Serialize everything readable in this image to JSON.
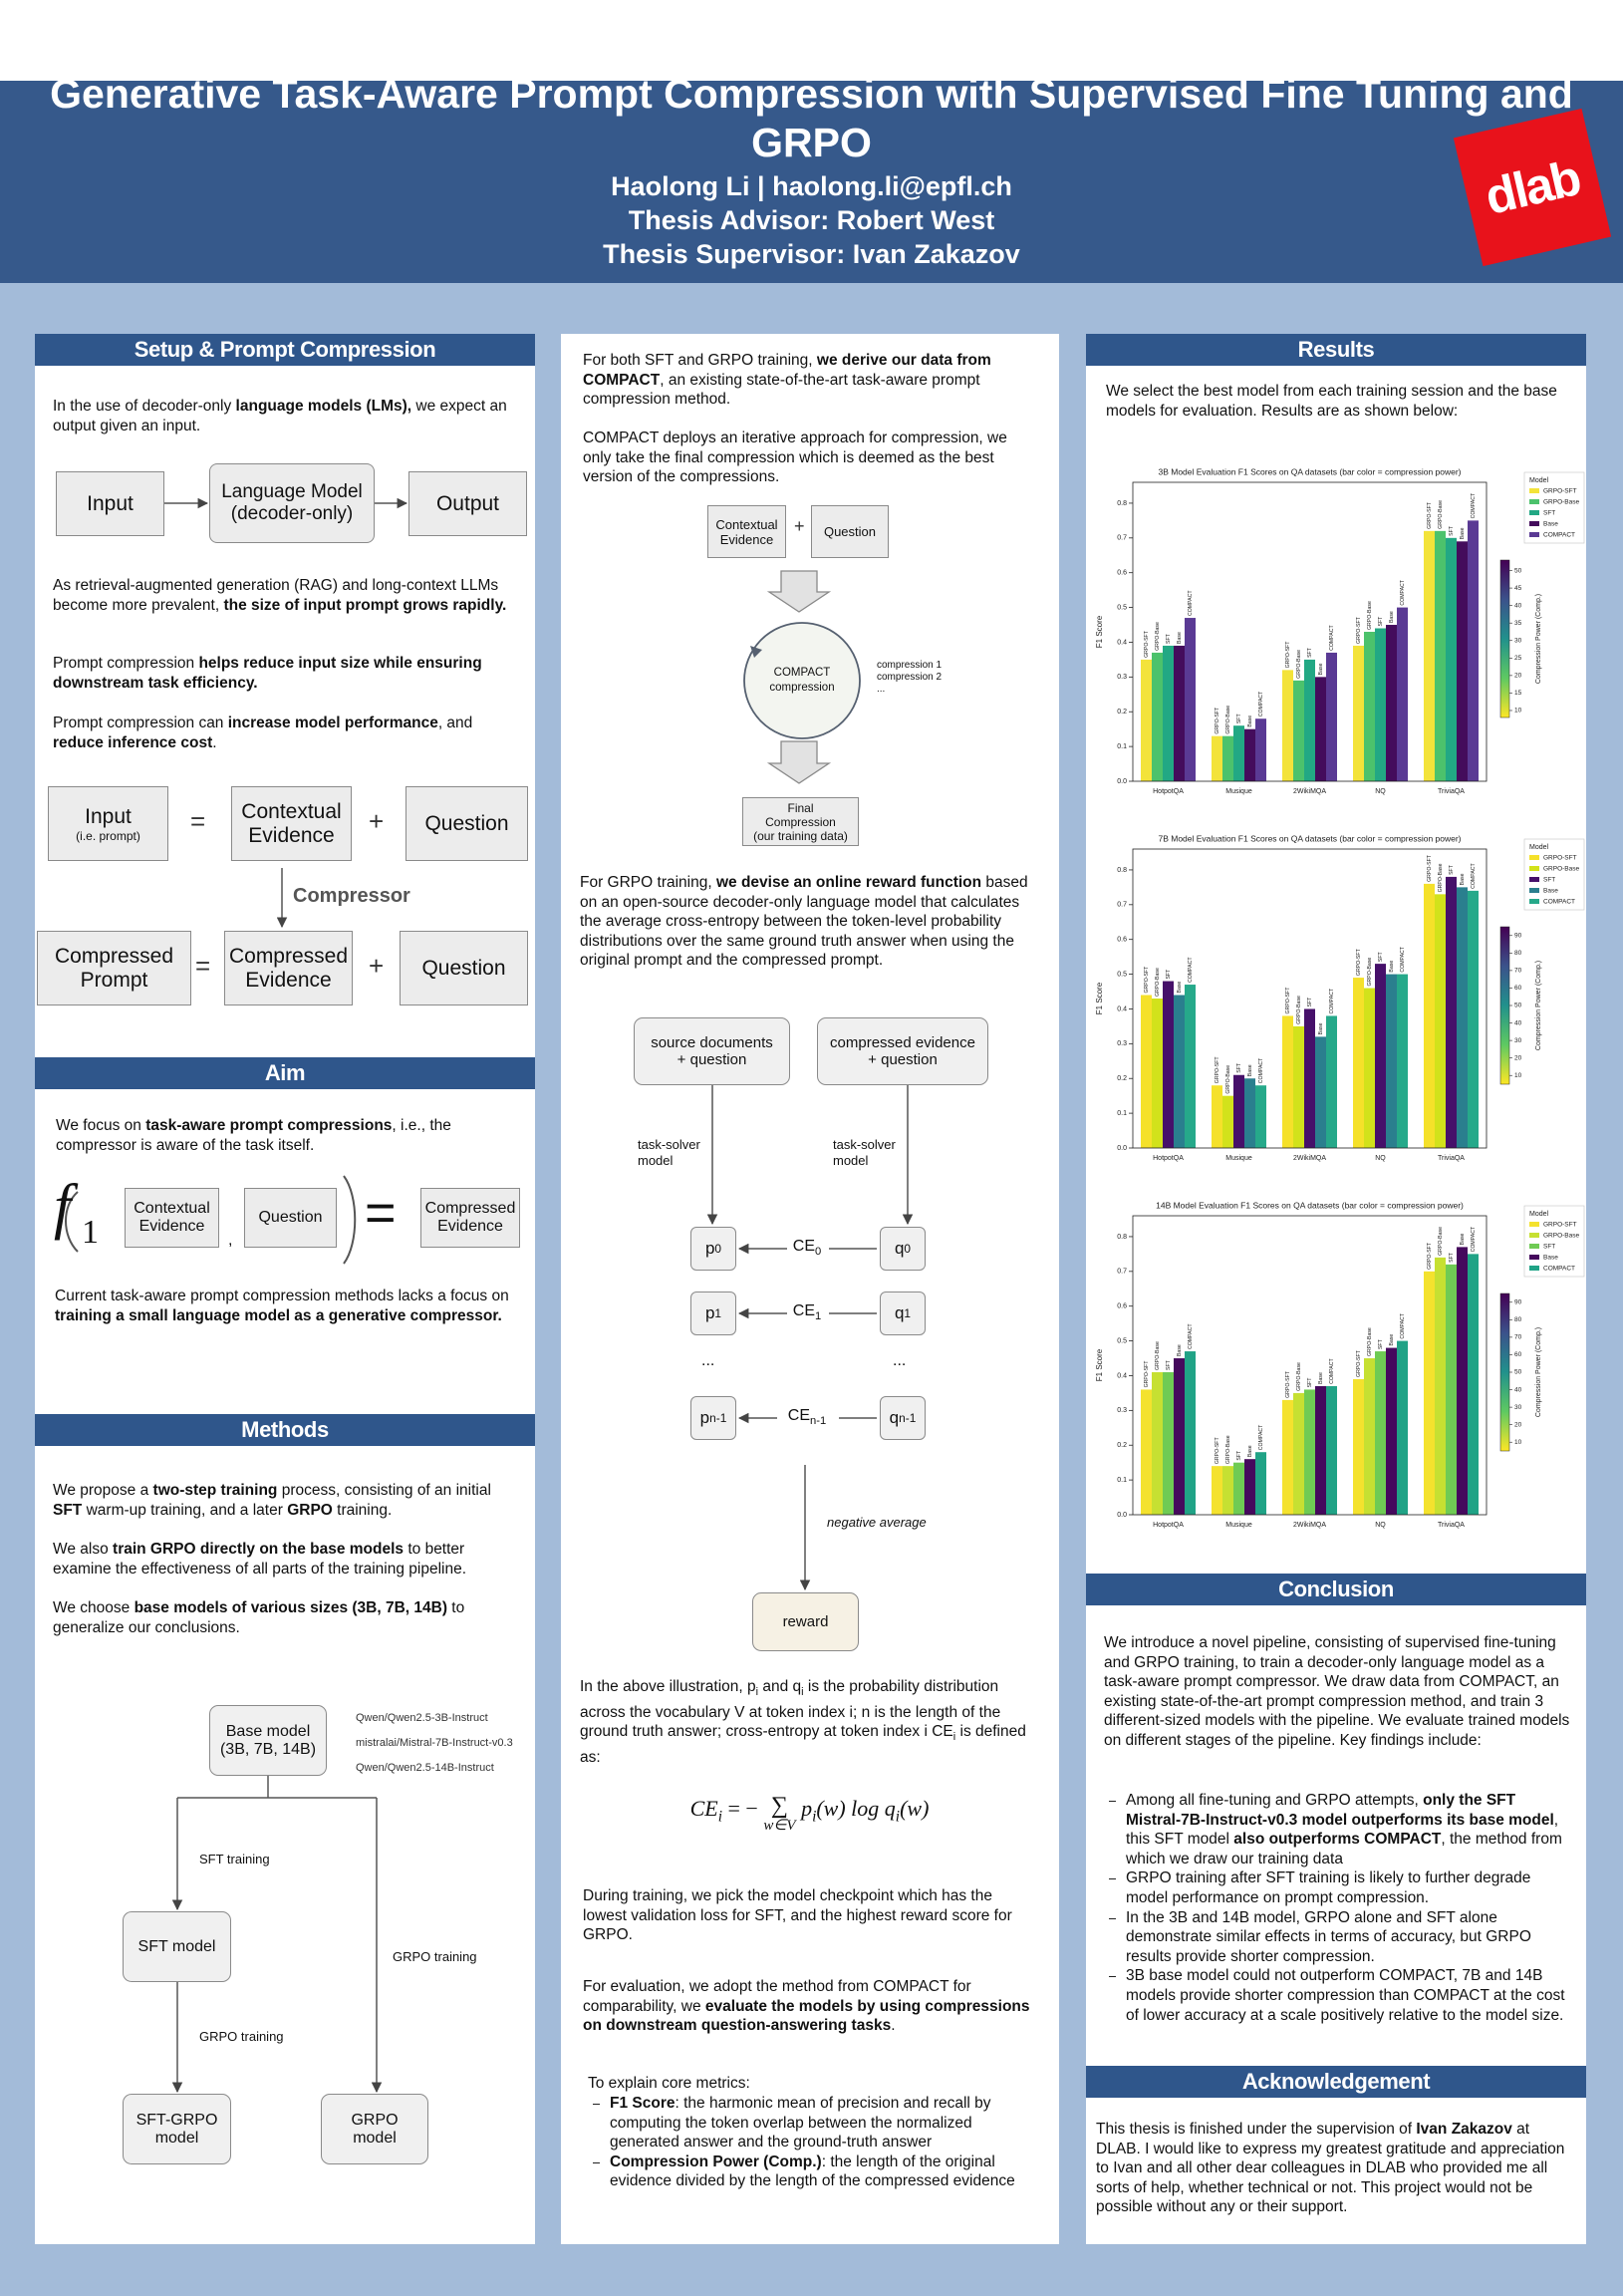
{
  "header": {
    "title": "Generative Task-Aware Prompt Compression with Supervised Fine Tuning and GRPO",
    "author": "Haolong Li | haolong.li@epfl.ch",
    "advisor": "Thesis Advisor: Robert West",
    "supervisor": "Thesis Supervisor: Ivan Zakazov",
    "logo": "dlab"
  },
  "setup": {
    "heading": "Setup & Prompt Compression",
    "p1": [
      "In the use of decoder-only ",
      "language models (LMs),",
      " we expect an output given an input."
    ],
    "diagram1": {
      "input": "Input",
      "lm": [
        "Language Model",
        "(decoder-only)"
      ],
      "output": "Output"
    },
    "p2": [
      "As retrieval-augmented generation (RAG) and long-context LLMs become more prevalent, ",
      "the size of input prompt grows rapidly."
    ],
    "p3": [
      "Prompt compression",
      " helps reduce input size while ensuring downstream task efficiency."
    ],
    "p4": [
      "Prompt compression can ",
      "increase model performance",
      ", and ",
      "reduce inference cost",
      "."
    ],
    "diagram2": {
      "input": "Input",
      "input_note": "(i.e. prompt)",
      "eq": "=",
      "ctx": [
        "Contextual",
        "Evidence"
      ],
      "plus": "+",
      "question": "Question",
      "compressor": "Compressor",
      "cprompt": [
        "Compressed",
        "Prompt"
      ],
      "cevidence": [
        "Compressed",
        "Evidence"
      ]
    }
  },
  "aim": {
    "heading": "Aim",
    "p1": [
      "We focus on ",
      "task-aware prompt compressions",
      ", i.e., the compressor is aware of the task itself."
    ],
    "formula": {
      "f": "f",
      "sub": "1",
      "ctx": [
        "Contextual",
        "Evidence"
      ],
      "comma": ",",
      "question": "Question",
      "eq": "=",
      "out": [
        "Compressed",
        "Evidence"
      ]
    },
    "p2": [
      "Current task-aware prompt compression methods lacks a focus on ",
      "training a small language model as a generative compressor."
    ]
  },
  "methods": {
    "heading": "Methods",
    "p1": [
      "We propose a ",
      "two-step training",
      " process, consisting of an initial ",
      "SFT",
      " warm-up training, and a later ",
      "GRPO",
      " training."
    ],
    "p2": [
      "We also ",
      "train GRPO directly on the base models",
      " to better examine the effectiveness of all parts of the training pipeline."
    ],
    "p3": [
      "We choose ",
      "base models of various sizes (3B, 7B, 14B)",
      " to generalize our conclusions."
    ],
    "tree": {
      "base": [
        "Base model",
        "(3B, 7B, 14B)"
      ],
      "models": [
        "Qwen/Qwen2.5-3B-Instruct",
        "mistralai/Mistral-7B-Instruct-v0.3",
        "Qwen/Qwen2.5-14B-Instruct"
      ],
      "sft_training": "SFT training",
      "sft_model": "SFT model",
      "grpo_training": "GRPO training",
      "sft_grpo": [
        "SFT-GRPO",
        "model"
      ],
      "grpo_model": [
        "GRPO",
        "model"
      ]
    }
  },
  "middle": {
    "p1": [
      "For both SFT and GRPO training, ",
      "we derive our data from COMPACT",
      ", an existing state-of-the-art task-aware prompt compression method."
    ],
    "p2": "COMPACT deploys an iterative approach for compression, we only take the final compression which is deemed as the best version of the compressions.",
    "flow": {
      "ctx": [
        "Contextual",
        "Evidence"
      ],
      "plus": "+",
      "question": "Question",
      "compact": [
        "COMPACT",
        "compression"
      ],
      "notes": [
        "compression 1",
        "compression 2",
        "..."
      ],
      "final": [
        "Final",
        "Compression",
        "(our training data)"
      ]
    },
    "p3": [
      "For GRPO training, ",
      "we devise an online reward function",
      " based on an open-source decoder-only language model that calculates the average cross-entropy between the token-level probability distributions over the same ground truth answer when using the original prompt and the compressed prompt."
    ],
    "reward": {
      "src": [
        "source documents",
        "+ question"
      ],
      "cmp": [
        "compressed evidence",
        "+ question"
      ],
      "solver": [
        "task-solver",
        "model"
      ],
      "p": "p",
      "q": "q",
      "ce": "CE",
      "indices": [
        "0",
        "1",
        "n-1"
      ],
      "dots": "...",
      "neg": "negative average",
      "reward": "reward"
    },
    "p4": [
      "In the above illustration, p",
      "i",
      " and q",
      "i",
      " is the probability distribution across the vocabulary V at token index i; n is the length of the ground truth answer; cross-entropy at token index i CE",
      "i",
      " is defined as:"
    ],
    "formula": {
      "lhs": "CE",
      "sub": "i",
      "eq": "= −",
      "sum": "∑",
      "under": "w∈V",
      "p": "p",
      "mid": "(w) log ",
      "q": "q",
      "end": "(w)"
    },
    "p5": "During training, we pick the model checkpoint which has the lowest validation loss for SFT, and the highest reward score for GRPO.",
    "p6": [
      "For evaluation, we adopt the method from COMPACT for comparability, we ",
      "evaluate the models by using compressions on downstream question-answering tasks",
      "."
    ],
    "p7": "To explain core metrics:",
    "metrics": [
      [
        "F1 Score",
        ": the harmonic mean of precision and recall by computing the token overlap between the normalized generated answer and the ground-truth answer"
      ],
      [
        "Compression Power (Comp.)",
        ": the length of the original evidence divided by the length of the compressed evidence"
      ]
    ]
  },
  "results": {
    "heading": "Results",
    "p1": "We select the best model from each training session and the base models for evaluation. Results are as shown below:"
  },
  "chart_data": [
    {
      "type": "bar",
      "title": "3B Model Evaluation F1 Scores on QA datasets (bar color = compression power)",
      "ylabel": "F1 Score",
      "categories": [
        "HotpotQA",
        "Musique",
        "2WikiMQA",
        "NQ",
        "TriviaQA"
      ],
      "series": [
        {
          "name": "GRPO-SFT",
          "color": "#f3e33a",
          "values": [
            0.35,
            0.13,
            0.32,
            0.39,
            0.72
          ]
        },
        {
          "name": "GRPO-Base",
          "color": "#4cc26c",
          "values": [
            0.37,
            0.13,
            0.29,
            0.43,
            0.72
          ]
        },
        {
          "name": "SFT",
          "color": "#22a884",
          "values": [
            0.39,
            0.16,
            0.35,
            0.44,
            0.7
          ]
        },
        {
          "name": "Base",
          "color": "#440c5c",
          "values": [
            0.39,
            0.15,
            0.3,
            0.45,
            0.69
          ]
        },
        {
          "name": "COMPACT",
          "color": "#5a3a94",
          "values": [
            0.47,
            0.18,
            0.37,
            0.5,
            0.75
          ]
        }
      ],
      "ylim": [
        0,
        0.86
      ],
      "yticks": [
        {
          "value": 0,
          "label": "0.0"
        },
        0.1,
        0.2,
        0.3,
        0.4,
        0.5,
        0.6,
        0.7,
        0.8
      ],
      "legend_title": "Model",
      "legend": "outside right",
      "colorbar_label": "Compression Power (Comp.)",
      "clim": [
        8,
        53
      ],
      "colorbar_ticks": [
        10,
        15,
        20,
        25,
        30,
        35,
        40,
        45,
        50
      ],
      "colormap": [
        "#fde725",
        "#5ec962",
        "#21918c",
        "#3b528b",
        "#440154"
      ]
    },
    {
      "type": "bar",
      "title": "7B Model Evaluation F1 Scores on QA datasets (bar color = compression power)",
      "ylabel": "F1 Score",
      "categories": [
        "HotpotQA",
        "Musique",
        "2WikiMQA",
        "NQ",
        "TriviaQA"
      ],
      "series": [
        {
          "name": "GRPO-SFT",
          "color": "#f5e12a",
          "values": [
            0.44,
            0.18,
            0.38,
            0.49,
            0.76
          ]
        },
        {
          "name": "GRPO-Base",
          "color": "#d2e21b",
          "values": [
            0.43,
            0.15,
            0.35,
            0.46,
            0.73
          ]
        },
        {
          "name": "SFT",
          "color": "#46106a",
          "values": [
            0.48,
            0.21,
            0.4,
            0.53,
            0.78
          ]
        },
        {
          "name": "Base",
          "color": "#2a7f8e",
          "values": [
            0.44,
            0.2,
            0.32,
            0.5,
            0.75
          ]
        },
        {
          "name": "COMPACT",
          "color": "#26a98a",
          "values": [
            0.47,
            0.18,
            0.38,
            0.5,
            0.74
          ]
        }
      ],
      "ylim": [
        0,
        0.86
      ],
      "yticks": [
        {
          "value": 0,
          "label": "0.0"
        },
        0.1,
        0.2,
        0.3,
        0.4,
        0.5,
        0.6,
        0.7,
        0.8
      ],
      "legend_title": "Model",
      "legend": "outside right",
      "colorbar_label": "Compression Power (Comp.)",
      "clim": [
        5,
        95
      ],
      "colorbar_ticks": [
        10,
        20,
        30,
        40,
        50,
        60,
        70,
        80,
        90
      ],
      "colormap": [
        "#fde725",
        "#5ec962",
        "#21918c",
        "#3b528b",
        "#440154"
      ]
    },
    {
      "type": "bar",
      "title": "14B Model Evaluation F1 Scores on QA datasets (bar color = compression power)",
      "ylabel": "F1 Score",
      "categories": [
        "HotpotQA",
        "Musique",
        "2WikiMQA",
        "NQ",
        "TriviaQA"
      ],
      "series": [
        {
          "name": "GRPO-SFT",
          "color": "#f4e22e",
          "values": [
            0.36,
            0.14,
            0.33,
            0.39,
            0.7
          ]
        },
        {
          "name": "GRPO-Base",
          "color": "#c6e032",
          "values": [
            0.41,
            0.14,
            0.35,
            0.45,
            0.74
          ]
        },
        {
          "name": "SFT",
          "color": "#6fcb54",
          "values": [
            0.41,
            0.15,
            0.36,
            0.47,
            0.72
          ]
        },
        {
          "name": "Base",
          "color": "#45095d",
          "values": [
            0.45,
            0.16,
            0.37,
            0.48,
            0.77
          ]
        },
        {
          "name": "COMPACT",
          "color": "#20a386",
          "values": [
            0.47,
            0.18,
            0.37,
            0.5,
            0.75
          ]
        }
      ],
      "ylim": [
        0,
        0.86
      ],
      "yticks": [
        {
          "value": 0,
          "label": "0.0"
        },
        0.1,
        0.2,
        0.3,
        0.4,
        0.5,
        0.6,
        0.7,
        0.8
      ],
      "legend_title": "Model",
      "legend": "outside right",
      "colorbar_label": "Compression Power (Comp.)",
      "clim": [
        5,
        95
      ],
      "colorbar_ticks": [
        10,
        20,
        30,
        40,
        50,
        60,
        70,
        80,
        90
      ],
      "colormap": [
        "#fde725",
        "#5ec962",
        "#21918c",
        "#3b528b",
        "#440154"
      ]
    }
  ],
  "conclusion": {
    "heading": "Conclusion",
    "p1": "We introduce a novel pipeline, consisting of supervised fine-tuning and GRPO training, to train a decoder-only language model as a task-aware prompt compressor. We draw data from COMPACT, an existing state-of-the-art prompt compression method, and train 3 different-sized models with the pipeline. We evaluate trained models on different stages of the pipeline. Key findings include:",
    "bullets": [
      [
        "Among all fine-tuning and GRPO attempts, ",
        "only the SFT Mistral-7B-Instruct-v0.3 model outperforms its base model",
        ", this SFT model ",
        "also outperforms COMPACT",
        ", the method from which we draw our training data"
      ],
      [
        "GRPO training after SFT training is likely to further degrade model performance on prompt compression."
      ],
      [
        "In the 3B and 14B model, GRPO alone and SFT alone demonstrate similar effects in terms of accuracy, but GRPO results provide shorter compression."
      ],
      [
        "3B base model could not outperform COMPACT, 7B and 14B models provide shorter compression than COMPACT at the cost of lower accuracy at a scale positively relative to the model size."
      ]
    ]
  },
  "ack": {
    "heading": "Acknowledgement",
    "p": [
      "This thesis is finished under the supervision of ",
      "Ivan Zakazov",
      " at DLAB. I would like to express my greatest gratitude and appreciation to Ivan and all other dear colleagues in DLAB who provided me all sorts of help, whether technical or not. This project would not be possible without any or their support."
    ]
  }
}
